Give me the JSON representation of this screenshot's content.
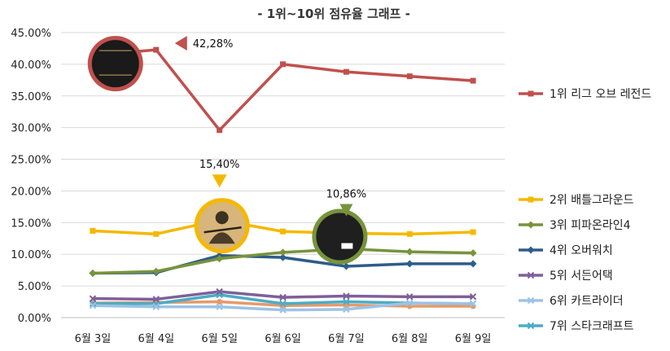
{
  "chart_data": {
    "type": "line",
    "title": "- 1위~10위 점유율 그래프 -",
    "categories": [
      "6월 3일",
      "6월 4일",
      "6월 5일",
      "6월 6일",
      "6월 7일",
      "6월 8일",
      "6월 9일"
    ],
    "y_ticks": [
      "0.00%",
      "5.00%",
      "10.00%",
      "15.00%",
      "20.00%",
      "25.00%",
      "30.00%",
      "35.00%",
      "40.00%",
      "45.00%"
    ],
    "ylim": [
      0,
      45
    ],
    "grid": "horizontal",
    "legend_position": "right",
    "series": [
      {
        "name": "1위 리그 오브 레전드",
        "color": "#c0504d",
        "marker": "square",
        "values": [
          41.4,
          42.28,
          29.6,
          40.0,
          38.8,
          38.1,
          37.4
        ]
      },
      {
        "name": "2위 배틀그라운드",
        "color": "#f5b800",
        "marker": "square",
        "values": [
          13.7,
          13.2,
          15.4,
          13.6,
          13.3,
          13.2,
          13.5
        ]
      },
      {
        "name": "3위 피파온라인4",
        "color": "#77933c",
        "marker": "diamond",
        "values": [
          7.0,
          7.3,
          9.3,
          10.3,
          10.86,
          10.4,
          10.2
        ]
      },
      {
        "name": "4위 오버워치",
        "color": "#2e5c8a",
        "marker": "diamond",
        "values": [
          7.0,
          7.1,
          9.8,
          9.5,
          8.1,
          8.5,
          8.5
        ]
      },
      {
        "name": "5위 서든어택",
        "color": "#7f5f9a",
        "marker": "x",
        "values": [
          3.0,
          2.9,
          4.1,
          3.2,
          3.4,
          3.3,
          3.3
        ]
      },
      {
        "name": "6위 카트라이더",
        "color": "#9dc3e6",
        "marker": "x",
        "values": [
          1.9,
          1.7,
          1.7,
          1.2,
          1.3,
          2.3,
          2.2
        ]
      },
      {
        "name": "7위 스타크래프트",
        "color": "#4bacc6",
        "marker": "x",
        "values": [
          2.2,
          2.2,
          3.6,
          2.2,
          2.5,
          2.3,
          2.2
        ]
      },
      {
        "name": "",
        "color": "#e59a6a",
        "marker": "circle",
        "values": [
          2.3,
          2.4,
          2.5,
          1.9,
          2.0,
          1.8,
          1.8
        ]
      }
    ],
    "legend": [
      {
        "label": "1위 리그 오브 레전드",
        "color": "#c0504d",
        "marker": "square"
      },
      {
        "label": "2위 배틀그라운드",
        "color": "#f5b800",
        "marker": "square"
      },
      {
        "label": "3위 피파온라인4",
        "color": "#77933c",
        "marker": "diamond"
      },
      {
        "label": "4위 오버워치",
        "color": "#2e5c8a",
        "marker": "diamond"
      },
      {
        "label": "5위 서든어택",
        "color": "#7f5f9a",
        "marker": "x"
      },
      {
        "label": "6위 카트라이더",
        "color": "#9dc3e6",
        "marker": "x"
      },
      {
        "label": "7위 스타크래프트",
        "color": "#4bacc6",
        "marker": "x"
      }
    ],
    "annotations": [
      {
        "text": "42,28%",
        "series": 0,
        "index": 1,
        "logo": "LEAGUE OF LEGENDS",
        "logo_color": "#c0504d",
        "arrow": "left"
      },
      {
        "text": "15,40%",
        "series": 1,
        "index": 2,
        "logo": "",
        "logo_color": "#f5b800",
        "arrow": "down"
      },
      {
        "text": "10,86%",
        "series": 2,
        "index": 4,
        "logo": "FIFA ONLINE 4",
        "logo_color": "#77933c",
        "arrow": "down"
      }
    ]
  }
}
